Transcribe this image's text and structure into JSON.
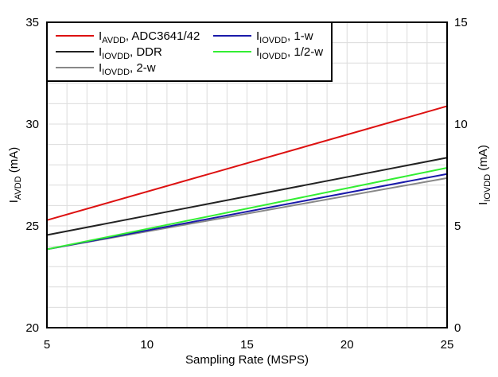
{
  "chart_data": {
    "type": "line",
    "title": "",
    "xlabel": "Sampling Rate (MSPS)",
    "ylabel_left": {
      "main": "I",
      "sub": "AVDD",
      "unit": " (mA)"
    },
    "ylabel_right": {
      "main": "I",
      "sub": "IOVDD",
      "unit": " (mA)"
    },
    "xlim": [
      5,
      25
    ],
    "ylim_left": [
      20,
      35
    ],
    "ylim_right": [
      0,
      15
    ],
    "x_ticks": [
      5,
      10,
      15,
      20,
      25
    ],
    "y_ticks_left": [
      20,
      25,
      30,
      35
    ],
    "y_ticks_right": [
      0,
      5,
      10,
      15
    ],
    "grid": true,
    "legend_position": "top-left",
    "series": [
      {
        "name": "IAVDD, ADC3641/42",
        "label_main": "I",
        "label_sub": "AVDD",
        "label_rest": ", ADC3641/42",
        "axis": "left",
        "color": "#dd1111",
        "x": [
          5,
          25
        ],
        "y": [
          25.28,
          30.88
        ]
      },
      {
        "name": "IIOVDD, DDR",
        "label_main": "I",
        "label_sub": "IOVDD",
        "label_rest": ", DDR",
        "axis": "right",
        "color": "#222222",
        "x": [
          5,
          25
        ],
        "y": [
          4.55,
          8.35
        ]
      },
      {
        "name": "IIOVDD, 2-w",
        "label_main": "I",
        "label_sub": "IOVDD",
        "label_rest": ", 2-w",
        "axis": "right",
        "color": "#888888",
        "x": [
          5,
          25
        ],
        "y": [
          3.85,
          7.35
        ]
      },
      {
        "name": "IIOVDD, 1-w",
        "label_main": "I",
        "label_sub": "IOVDD",
        "label_rest": ", 1-w",
        "axis": "right",
        "color": "#1a1aaa",
        "x": [
          5,
          25
        ],
        "y": [
          3.85,
          7.55
        ]
      },
      {
        "name": "IIOVDD, 1/2-w",
        "label_main": "I",
        "label_sub": "IOVDD",
        "label_rest": ", 1/2-w",
        "axis": "right",
        "color": "#33ee33",
        "x": [
          5,
          25
        ],
        "y": [
          3.85,
          7.85
        ]
      }
    ]
  }
}
